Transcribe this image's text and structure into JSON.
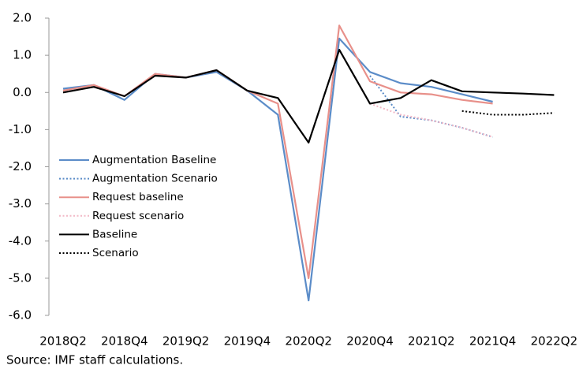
{
  "chart_data": {
    "type": "line",
    "categories": [
      "2018Q2",
      null,
      "2018Q4",
      null,
      "2019Q2",
      null,
      "2019Q4",
      null,
      "2020Q2",
      null,
      "2020Q4",
      null,
      "2021Q2",
      null,
      "2021Q4",
      null,
      "2022Q2"
    ],
    "series": [
      {
        "name": "Augmentation Baseline",
        "color": "#5b8cc8",
        "dash": false,
        "values": [
          0.1,
          0.2,
          -0.2,
          0.5,
          0.4,
          0.55,
          0.05,
          -0.6,
          -5.6,
          1.45,
          0.55,
          0.25,
          0.15,
          -0.05,
          -0.25,
          null,
          null
        ]
      },
      {
        "name": "Augmentation Scenario",
        "color": "#5b8cc8",
        "dash": true,
        "values": [
          null,
          null,
          null,
          null,
          null,
          null,
          null,
          null,
          null,
          null,
          0.45,
          -0.65,
          -0.75,
          -0.95,
          -1.2,
          null,
          null
        ]
      },
      {
        "name": "Request baseline",
        "color": "#e8908a",
        "dash": false,
        "values": [
          0.05,
          0.2,
          -0.1,
          0.5,
          0.4,
          0.6,
          0.05,
          -0.3,
          -5.0,
          1.8,
          0.3,
          0.0,
          -0.05,
          -0.2,
          -0.3,
          null,
          null
        ]
      },
      {
        "name": "Request scenario",
        "color": "#f2b8c6",
        "dash": true,
        "values": [
          null,
          null,
          null,
          null,
          null,
          null,
          null,
          null,
          null,
          null,
          -0.3,
          -0.6,
          -0.75,
          -0.95,
          -1.2,
          null,
          null
        ]
      },
      {
        "name": "Baseline",
        "color": "#000000",
        "dash": false,
        "values": [
          0.0,
          0.15,
          -0.1,
          0.45,
          0.4,
          0.6,
          0.05,
          -0.15,
          -1.35,
          1.15,
          -0.3,
          -0.15,
          0.33,
          0.03,
          0.0,
          -0.03,
          -0.07
        ]
      },
      {
        "name": "Scenario",
        "color": "#000000",
        "dash": true,
        "values": [
          null,
          null,
          null,
          null,
          null,
          null,
          null,
          null,
          null,
          null,
          null,
          null,
          null,
          -0.5,
          -0.6,
          -0.6,
          -0.55
        ]
      }
    ],
    "ylim": [
      -6.0,
      2.0
    ],
    "yticks": [
      {
        "value": -6,
        "label": "-6.0"
      },
      {
        "value": -5,
        "label": "-5.0"
      },
      {
        "value": -4,
        "label": "-4.0"
      },
      {
        "value": -3,
        "label": "-3.0"
      },
      {
        "value": -2,
        "label": "-2.0"
      },
      {
        "value": -1,
        "label": "-1.0"
      },
      {
        "value": 0,
        "label": "0.0"
      },
      {
        "value": 1,
        "label": "1.0"
      },
      {
        "value": 2,
        "label": "2.0"
      }
    ],
    "grid": false,
    "legend": "left",
    "source": "Source: IMF staff calculations."
  }
}
